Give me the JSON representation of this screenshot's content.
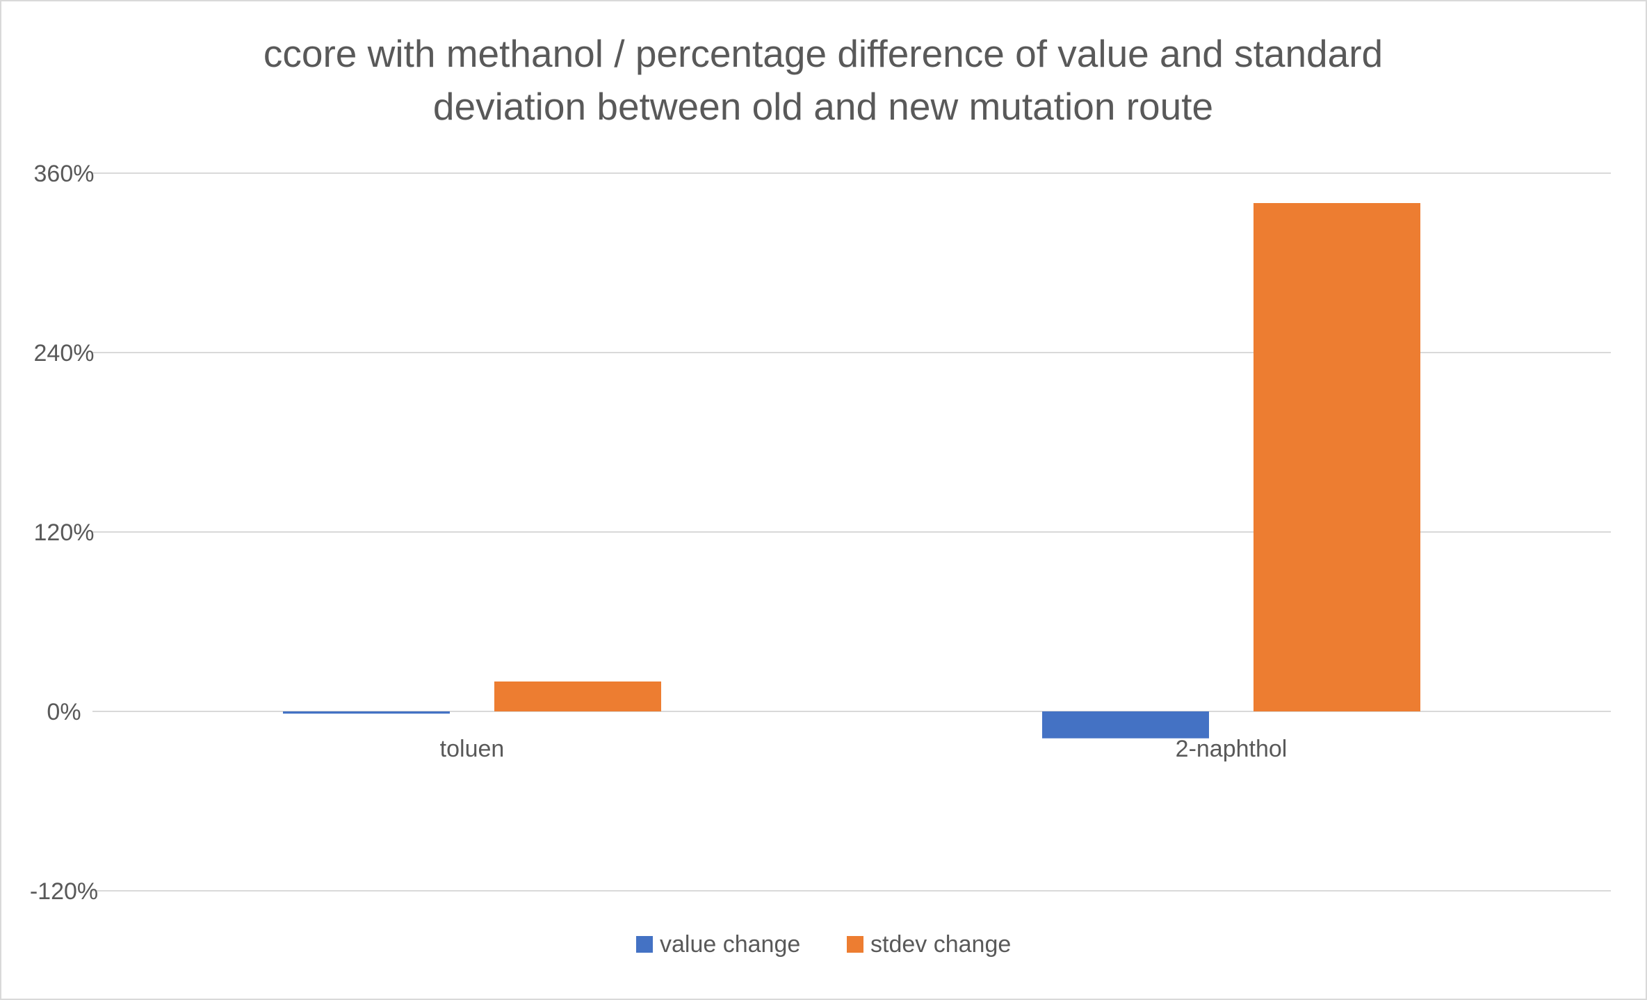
{
  "chart_data": {
    "type": "bar",
    "title_lines": [
      "ccore with methanol / percentage difference of value and standard",
      "deviation between old and new mutation route"
    ],
    "categories": [
      "toluen",
      "2-naphthol"
    ],
    "series": [
      {
        "name": "value change",
        "color": "#4472C4",
        "values": [
          -1.5,
          -18
        ]
      },
      {
        "name": "stdev change",
        "color": "#ED7D31",
        "values": [
          20,
          340
        ]
      }
    ],
    "y_ticks": [
      {
        "value": 360,
        "label": "360%"
      },
      {
        "value": 240,
        "label": "240%"
      },
      {
        "value": 120,
        "label": "120%"
      },
      {
        "value": 0,
        "label": "0%"
      },
      {
        "value": -120,
        "label": "-120%"
      }
    ],
    "ylim": [
      -120,
      360
    ],
    "grid": true,
    "legend_position": "bottom",
    "colors": {
      "grid": "#d9d9d9",
      "text": "#595959"
    }
  }
}
